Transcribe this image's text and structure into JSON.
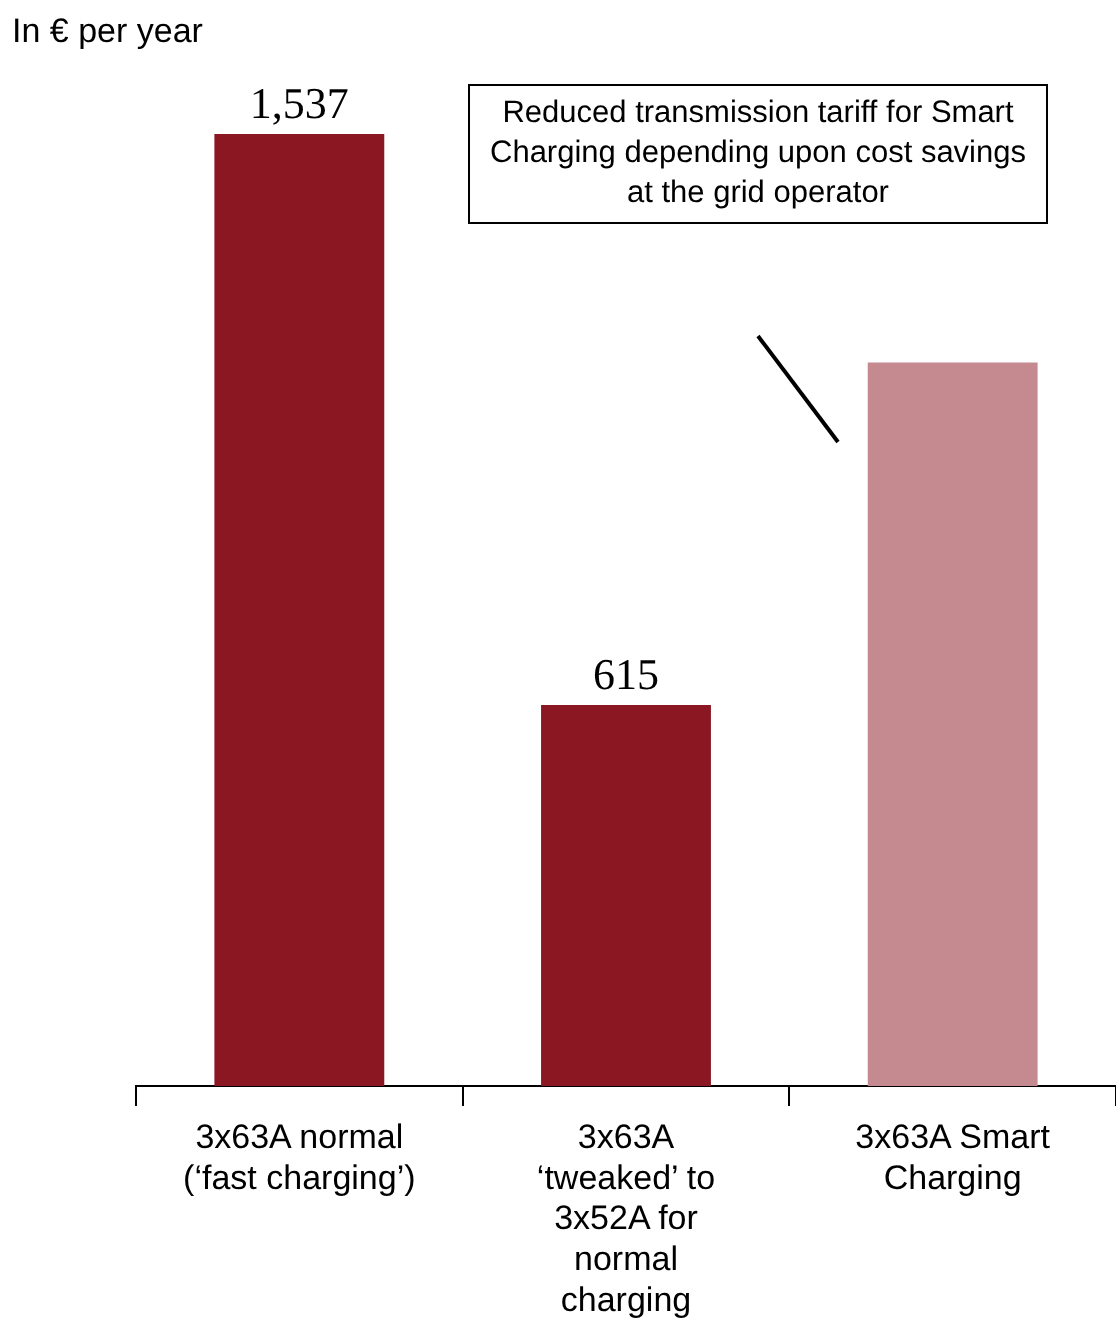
{
  "chart_data": {
    "type": "bar",
    "subtitle": "In € per year",
    "categories": [
      "3x63A normal\n(‘fast charging’)",
      "3x63A\n‘tweaked’ to\n3x52A for\nnormal\ncharging",
      "3x63A Smart\nCharging"
    ],
    "values": [
      1537,
      615,
      1168
    ],
    "colors": [
      "#8b1722",
      "#8b1722",
      "#c48a8f"
    ],
    "value_labels": [
      "1,537",
      "615",
      null
    ],
    "annotations": [
      "Reduced transmission tariff for Smart Charging depending upon cost savings at the grid operator"
    ],
    "grid": false,
    "legend": false
  }
}
